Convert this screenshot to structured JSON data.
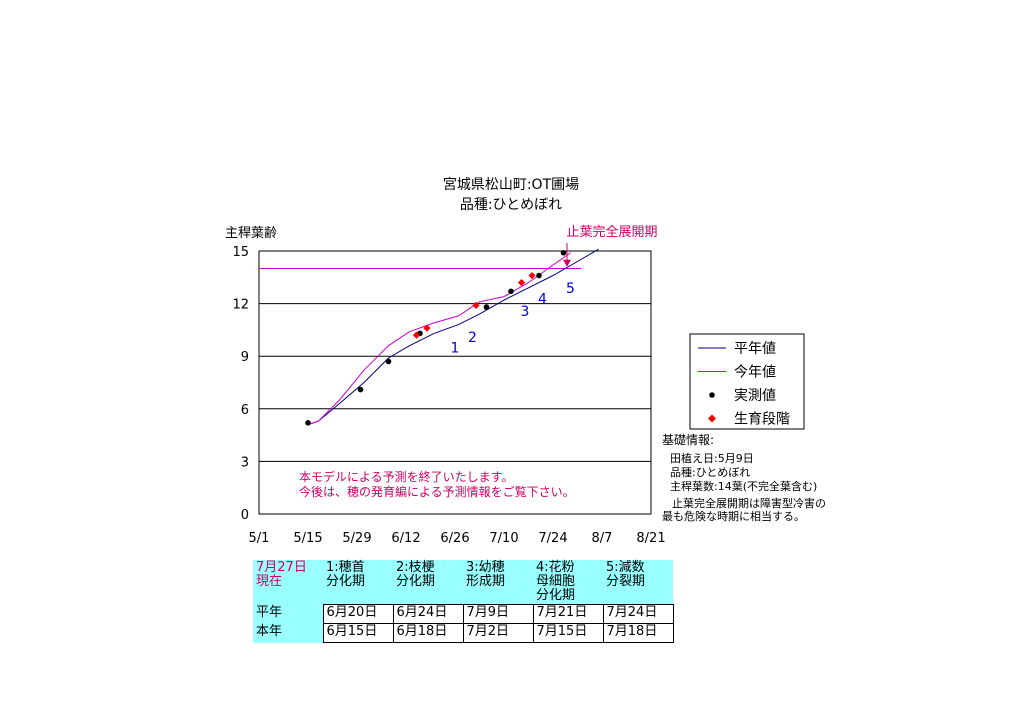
{
  "chart_data": {
    "type": "line",
    "title": [
      "宮城県松山町:OT圃場",
      "品種:ひとめぼれ"
    ],
    "ylabel": "主稈葉齢",
    "ylim": [
      0,
      15
    ],
    "yticks": [
      0,
      3,
      6,
      9,
      12,
      15
    ],
    "x_tick_labels": [
      "5/1",
      "5/15",
      "5/29",
      "6/12",
      "6/26",
      "7/10",
      "7/24",
      "8/7",
      "8/21"
    ],
    "xlim": [
      "5/1",
      "8/21"
    ],
    "grid": "horizontal",
    "legend_placement": "right",
    "series": [
      {
        "name": "平年値",
        "kind": "line",
        "color": "#000080",
        "points": [
          [
            "5/15",
            5.1
          ],
          [
            "5/18",
            5.3
          ],
          [
            "5/24",
            6.3
          ],
          [
            "5/31",
            7.5
          ],
          [
            "6/7",
            8.9
          ],
          [
            "6/13",
            9.6
          ],
          [
            "6/20",
            10.3
          ],
          [
            "6/27",
            10.8
          ],
          [
            "7/3",
            11.4
          ],
          [
            "7/10",
            12.2
          ],
          [
            "7/17",
            12.9
          ],
          [
            "7/24",
            13.6
          ],
          [
            "7/31",
            14.4
          ],
          [
            "8/6",
            15.1
          ]
        ]
      },
      {
        "name": "今年値",
        "kind": "line",
        "color": "#cc00cc",
        "points": [
          [
            "5/15",
            5.1
          ],
          [
            "5/18",
            5.3
          ],
          [
            "5/24",
            6.5
          ],
          [
            "5/31",
            8.2
          ],
          [
            "6/7",
            9.6
          ],
          [
            "6/13",
            10.4
          ],
          [
            "6/20",
            10.9
          ],
          [
            "6/27",
            11.3
          ],
          [
            "7/3",
            12.1
          ],
          [
            "7/10",
            12.4
          ],
          [
            "7/17",
            13.2
          ],
          [
            "7/24",
            14.2
          ],
          [
            "7/29",
            14.9
          ]
        ]
      },
      {
        "name": "実測値",
        "kind": "scatter",
        "color": "#000000",
        "points": [
          [
            "5/15",
            5.2
          ],
          [
            "5/30",
            7.1
          ],
          [
            "6/7",
            8.7
          ],
          [
            "6/16",
            10.3
          ],
          [
            "7/5",
            11.8
          ],
          [
            "7/12",
            12.7
          ],
          [
            "7/20",
            13.6
          ],
          [
            "7/27",
            14.9
          ]
        ]
      },
      {
        "name": "生育段階",
        "kind": "scatter",
        "color": "#ff0000",
        "points": [
          [
            "6/15",
            10.2
          ],
          [
            "6/18",
            10.6
          ],
          [
            "7/2",
            11.9
          ],
          [
            "7/15",
            13.2
          ],
          [
            "7/18",
            13.6
          ]
        ]
      }
    ],
    "hline": {
      "name": "止葉",
      "y": 14,
      "from": "5/1",
      "to": "8/1",
      "color": "#cc00cc"
    },
    "stage_labels": [
      {
        "text": "1",
        "x": "6/26",
        "y": 9.2
      },
      {
        "text": "2",
        "x": "7/1",
        "y": 9.8
      },
      {
        "text": "3",
        "x": "7/16",
        "y": 11.3
      },
      {
        "text": "4",
        "x": "7/21",
        "y": 12.0
      },
      {
        "text": "5",
        "x": "7/29",
        "y": 12.6
      }
    ],
    "annotations": {
      "arrow_label": "止葉完全展開期",
      "arrow_target": {
        "x": "7/28",
        "y": 14.1
      },
      "notice": [
        "本モデルによる予測を終了いたします。",
        "今後は、穂の発育編による予測情報をご覧下さい。"
      ]
    }
  },
  "info": {
    "heading": "基礎情報:",
    "lines": [
      "田植え日:5月9日",
      "品種:ひとめぼれ",
      "主稈葉数:14葉(不完全葉含む)"
    ],
    "note": [
      "止葉完全展開期は障害型冷害の",
      "最も危険な時期に相当する。"
    ]
  },
  "stage_table": {
    "corner": "7月27日\n現在",
    "stages": [
      "1:穂首\n分化期",
      "2:枝梗\n分化期",
      "3:幼穂\n形成期",
      "4:花粉\n母細胞\n分化期",
      "5:減数\n分裂期"
    ],
    "rows": [
      {
        "label": "平年",
        "values": [
          "6月20日",
          "6月24日",
          "7月9日",
          "7月21日",
          "7月24日"
        ]
      },
      {
        "label": "本年",
        "values": [
          "6月15日",
          "6月18日",
          "7月2日",
          "7月15日",
          "7月18日"
        ]
      }
    ]
  }
}
